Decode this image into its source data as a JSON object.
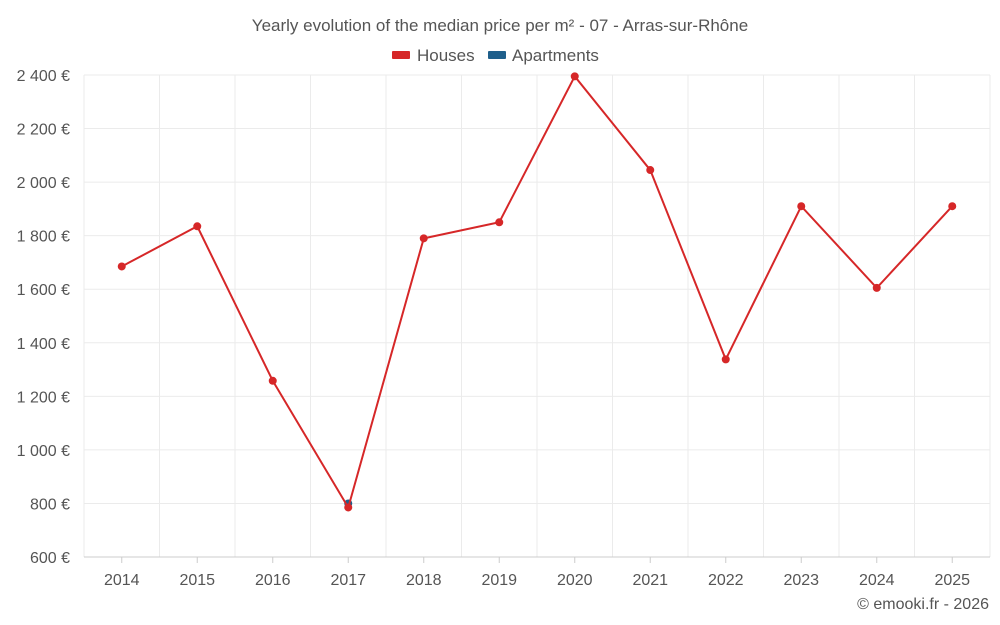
{
  "chart_data": {
    "type": "line",
    "title": "Yearly evolution of the median price per m² - 07 - Arras-sur-Rhône",
    "categories": [
      "2014",
      "2015",
      "2016",
      "2017",
      "2018",
      "2019",
      "2020",
      "2021",
      "2022",
      "2023",
      "2024",
      "2025"
    ],
    "series": [
      {
        "name": "Houses",
        "color": "#d62728",
        "values": [
          1685,
          1835,
          1258,
          785,
          1790,
          1850,
          2395,
          2045,
          1338,
          1910,
          1605,
          1910
        ]
      },
      {
        "name": "Apartments",
        "color": "#1f5f8b",
        "values": [
          null,
          null,
          null,
          800,
          null,
          null,
          null,
          null,
          null,
          null,
          null,
          null
        ]
      }
    ],
    "ylim": [
      600,
      2400
    ],
    "yticks": [
      600,
      800,
      1000,
      1200,
      1400,
      1600,
      1800,
      2000,
      2200,
      2400
    ],
    "ytick_labels": [
      "600 €",
      "800 €",
      "1 000 €",
      "1 200 €",
      "1 400 €",
      "1 600 €",
      "1 800 €",
      "2 000 €",
      "2 200 €",
      "2 400 €"
    ],
    "xlabel": "",
    "ylabel": "",
    "grid": true,
    "legend_position": "top-center"
  },
  "credit": "© emooki.fr - 2026"
}
